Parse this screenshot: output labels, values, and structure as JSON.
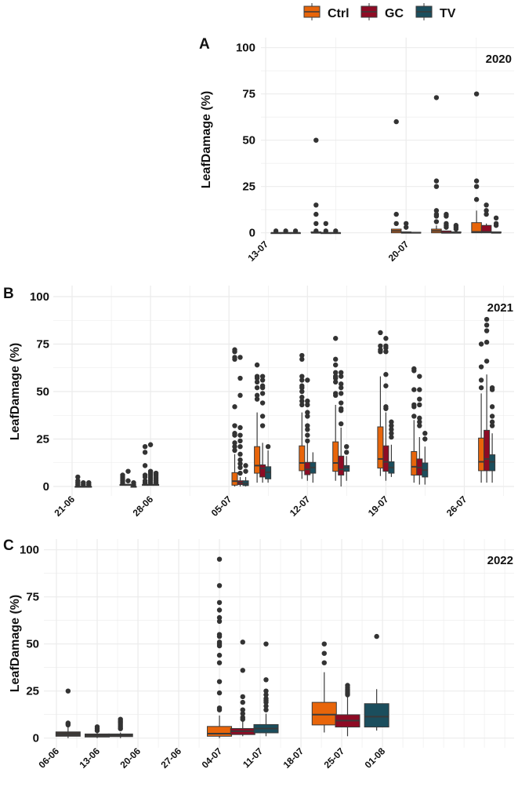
{
  "legend": {
    "position": "top",
    "items": [
      {
        "label": "Ctrl",
        "color": "#E8650A"
      },
      {
        "label": "GC",
        "color": "#8E0B24"
      },
      {
        "label": "TV",
        "color": "#1B4E5D"
      }
    ]
  },
  "chart_data": [
    {
      "type": "boxplot",
      "panel": "A",
      "year_label": "2020",
      "ylabel": "LeafDamage (%)",
      "ylim": [
        0,
        100
      ],
      "yticks": [
        "0",
        "25",
        "50",
        "75",
        "100"
      ],
      "xticks": [
        "13-07",
        "20-07"
      ],
      "grid": true,
      "boxes": [
        {
          "date": "14-07",
          "group": "Ctrl",
          "q1": 0,
          "median": 0,
          "q3": 0,
          "low": 0,
          "high": 0,
          "outliers": [
            1
          ]
        },
        {
          "date": "14-07",
          "group": "GC",
          "q1": 0,
          "median": 0,
          "q3": 0,
          "low": 0,
          "high": 0,
          "outliers": [
            1
          ]
        },
        {
          "date": "14-07",
          "group": "TV",
          "q1": 0,
          "median": 0,
          "q3": 0,
          "low": 0,
          "high": 0,
          "outliers": [
            1
          ]
        },
        {
          "date": "16-07",
          "group": "Ctrl",
          "q1": 0,
          "median": 0,
          "q3": 0.5,
          "low": 0,
          "high": 0.5,
          "outliers": [
            1,
            5,
            10,
            15,
            50
          ]
        },
        {
          "date": "16-07",
          "group": "GC",
          "q1": 0,
          "median": 0,
          "q3": 0,
          "low": 0,
          "high": 0,
          "outliers": [
            1,
            5
          ]
        },
        {
          "date": "16-07",
          "group": "TV",
          "q1": 0,
          "median": 0,
          "q3": 0,
          "low": 0,
          "high": 0,
          "outliers": [
            1
          ]
        },
        {
          "date": "20-07",
          "group": "Ctrl",
          "q1": 0,
          "median": 1,
          "q3": 2,
          "low": 0,
          "high": 2,
          "outliers": [
            5,
            10,
            60
          ]
        },
        {
          "date": "20-07",
          "group": "GC",
          "q1": 0,
          "median": 0,
          "q3": 0.5,
          "low": 0,
          "high": 0.5,
          "outliers": [
            3,
            5
          ]
        },
        {
          "date": "20-07",
          "group": "TV",
          "q1": 0,
          "median": 0,
          "q3": 0.3,
          "low": 0,
          "high": 0.3,
          "outliers": []
        },
        {
          "date": "22-07",
          "group": "Ctrl",
          "q1": 0,
          "median": 1,
          "q3": 2,
          "low": 0,
          "high": 4,
          "outliers": [
            6,
            9,
            10,
            12,
            25,
            28,
            73
          ]
        },
        {
          "date": "22-07",
          "group": "GC",
          "q1": 0,
          "median": 0,
          "q3": 1,
          "low": 0,
          "high": 1,
          "outliers": [
            3,
            4,
            5,
            9,
            10
          ]
        },
        {
          "date": "22-07",
          "group": "TV",
          "q1": 0,
          "median": 0,
          "q3": 0.5,
          "low": 0,
          "high": 0.5,
          "outliers": [
            2,
            3,
            4
          ]
        },
        {
          "date": "24-07",
          "group": "Ctrl",
          "q1": 0,
          "median": 0.5,
          "q3": 5.5,
          "low": 0,
          "high": 12,
          "outliers": [
            18,
            25,
            28,
            75
          ]
        },
        {
          "date": "24-07",
          "group": "GC",
          "q1": 0,
          "median": 0.5,
          "q3": 4,
          "low": 0,
          "high": 5,
          "outliers": [
            10,
            12,
            15
          ]
        },
        {
          "date": "24-07",
          "group": "TV",
          "q1": 0,
          "median": 0,
          "q3": 0.5,
          "low": 0,
          "high": 0.5,
          "outliers": [
            4,
            5,
            8
          ]
        }
      ]
    },
    {
      "type": "boxplot",
      "panel": "B",
      "year_label": "2021",
      "ylabel": "LeafDamage (%)",
      "ylim": [
        0,
        100
      ],
      "yticks": [
        "0",
        "25",
        "50",
        "75",
        "100"
      ],
      "xticks": [
        "21-06",
        "28-06",
        "05-07",
        "12-07",
        "19-07",
        "26-07"
      ],
      "grid": true,
      "boxes": [
        {
          "date": "22-06",
          "group": "Ctrl",
          "q1": 0,
          "median": 0,
          "q3": 0,
          "low": 0,
          "high": 0,
          "outliers": [
            1,
            2,
            3,
            5
          ]
        },
        {
          "date": "22-06",
          "group": "GC",
          "q1": 0,
          "median": 0,
          "q3": 0,
          "low": 0,
          "high": 0,
          "outliers": [
            1,
            2
          ]
        },
        {
          "date": "22-06",
          "group": "TV",
          "q1": 0,
          "median": 0,
          "q3": 0,
          "low": 0,
          "high": 0,
          "outliers": [
            1,
            2
          ]
        },
        {
          "date": "26-06",
          "group": "Ctrl",
          "q1": 1,
          "median": 1,
          "q3": 1,
          "low": 1,
          "high": 1,
          "outliers": [
            2,
            3,
            4,
            5,
            6
          ]
        },
        {
          "date": "26-06",
          "group": "GC",
          "q1": 1,
          "median": 1,
          "q3": 1,
          "low": 1,
          "high": 1,
          "outliers": [
            3,
            8
          ]
        },
        {
          "date": "26-06",
          "group": "TV",
          "q1": 0,
          "median": 0,
          "q3": 0,
          "low": 0,
          "high": 0,
          "outliers": [
            1,
            2
          ]
        },
        {
          "date": "28-06",
          "group": "Ctrl",
          "q1": 1,
          "median": 1,
          "q3": 1,
          "low": 1,
          "high": 1,
          "outliers": [
            2,
            3,
            5,
            6,
            11,
            18,
            21
          ]
        },
        {
          "date": "28-06",
          "group": "GC",
          "q1": 1,
          "median": 1,
          "q3": 1,
          "low": 1,
          "high": 1,
          "outliers": [
            2,
            3,
            4,
            5,
            6,
            7,
            8,
            22
          ]
        },
        {
          "date": "28-06",
          "group": "TV",
          "q1": 1,
          "median": 1,
          "q3": 1,
          "low": 1,
          "high": 1,
          "outliers": [
            2,
            3,
            4,
            5,
            6,
            7
          ]
        },
        {
          "date": "06-07",
          "group": "Ctrl",
          "q1": 0.7,
          "median": 2.8,
          "q3": 7.3,
          "low": 0,
          "high": 17,
          "outliers": [
            19,
            21,
            23,
            27,
            28,
            32,
            42,
            67,
            68,
            71,
            72
          ]
        },
        {
          "date": "06-07",
          "group": "GC",
          "q1": 1,
          "median": 2,
          "q3": 3,
          "low": 0,
          "high": 5,
          "outliers": [
            7,
            10,
            12,
            14,
            17,
            21,
            24,
            27,
            31,
            48,
            57,
            68
          ]
        },
        {
          "date": "06-07",
          "group": "TV",
          "q1": 0.5,
          "median": 1.5,
          "q3": 3,
          "low": 0,
          "high": 5,
          "outliers": [
            8,
            11
          ]
        },
        {
          "date": "08-07",
          "group": "Ctrl",
          "q1": 7,
          "median": 11,
          "q3": 21,
          "low": 2,
          "high": 39,
          "outliers": [
            46,
            48,
            52,
            55,
            57,
            58,
            64
          ]
        },
        {
          "date": "08-07",
          "group": "GC",
          "q1": 5,
          "median": 9.6,
          "q3": 11.4,
          "low": 2,
          "high": 23,
          "outliers": [
            32,
            37,
            44,
            49,
            52,
            53,
            56,
            58
          ]
        },
        {
          "date": "08-07",
          "group": "TV",
          "q1": 4,
          "median": 7.5,
          "q3": 10.4,
          "low": 2,
          "high": 19,
          "outliers": [
            21
          ]
        },
        {
          "date": "12-07",
          "group": "Ctrl",
          "q1": 8.3,
          "median": 12.4,
          "q3": 21.4,
          "low": 4,
          "high": 39,
          "outliers": [
            43,
            45,
            47,
            50,
            52,
            53,
            56,
            58,
            67,
            69
          ]
        },
        {
          "date": "12-07",
          "group": "GC",
          "q1": 6.2,
          "median": 9,
          "q3": 12.7,
          "low": 3,
          "high": 23,
          "outliers": [
            24,
            27,
            30,
            32,
            37,
            39,
            43,
            45,
            56
          ]
        },
        {
          "date": "12-07",
          "group": "TV",
          "q1": 7,
          "median": 10,
          "q3": 12.7,
          "low": 2,
          "high": 18,
          "outliers": []
        },
        {
          "date": "15-07",
          "group": "Ctrl",
          "q1": 8,
          "median": 12.4,
          "q3": 23.5,
          "low": 3,
          "high": 43,
          "outliers": [
            48,
            49,
            55,
            57,
            58,
            60,
            64,
            67,
            78
          ]
        },
        {
          "date": "15-07",
          "group": "GC",
          "q1": 6,
          "median": 9,
          "q3": 16,
          "low": 0,
          "high": 31,
          "outliers": [
            33,
            40,
            41,
            44,
            49,
            52,
            54,
            58,
            60
          ]
        },
        {
          "date": "15-07",
          "group": "TV",
          "q1": 8,
          "median": 10,
          "q3": 11,
          "low": 3,
          "high": 16,
          "outliers": [
            18,
            21
          ]
        },
        {
          "date": "19-07",
          "group": "Ctrl",
          "q1": 9.7,
          "median": 14.5,
          "q3": 31.4,
          "low": 5.5,
          "high": 58,
          "outliers": [
            71,
            72,
            74,
            81
          ]
        },
        {
          "date": "19-07",
          "group": "GC",
          "q1": 8,
          "median": 13,
          "q3": 21.4,
          "low": 3,
          "high": 39,
          "outliers": [
            41,
            42,
            53,
            59,
            71,
            73,
            74,
            78
          ]
        },
        {
          "date": "19-07",
          "group": "TV",
          "q1": 7,
          "median": 10,
          "q3": 13,
          "low": 5,
          "high": 22,
          "outliers": [
            26,
            28,
            30,
            32,
            34
          ]
        },
        {
          "date": "22-07",
          "group": "Ctrl",
          "q1": 6,
          "median": 10.4,
          "q3": 18.4,
          "low": 2,
          "high": 35,
          "outliers": [
            37,
            42,
            43,
            51,
            61,
            62
          ]
        },
        {
          "date": "22-07",
          "group": "GC",
          "q1": 6,
          "median": 10,
          "q3": 14.5,
          "low": 1,
          "high": 26,
          "outliers": [
            32,
            34,
            36,
            43,
            46,
            51,
            58
          ]
        },
        {
          "date": "22-07",
          "group": "TV",
          "q1": 5,
          "median": 8.6,
          "q3": 12.4,
          "low": 1,
          "high": 21,
          "outliers": [
            25,
            28
          ]
        },
        {
          "date": "28-07",
          "group": "Ctrl",
          "q1": 8.3,
          "median": 13,
          "q3": 25.5,
          "low": 2,
          "high": 49,
          "outliers": [
            52,
            56,
            63,
            75
          ]
        },
        {
          "date": "28-07",
          "group": "GC",
          "q1": 8.3,
          "median": 14.5,
          "q3": 29.6,
          "low": 2,
          "high": 59,
          "outliers": [
            66,
            76,
            82,
            85,
            88
          ]
        },
        {
          "date": "28-07",
          "group": "TV",
          "q1": 8.3,
          "median": 13,
          "q3": 16.7,
          "low": 2,
          "high": 28,
          "outliers": [
            32,
            34,
            37,
            42,
            51,
            52
          ]
        }
      ]
    },
    {
      "type": "boxplot",
      "panel": "C",
      "year_label": "2022",
      "ylabel": "LeafDamage (%)",
      "ylim": [
        0,
        100
      ],
      "yticks": [
        "0",
        "25",
        "50",
        "75",
        "100"
      ],
      "xticks": [
        "06-06",
        "13-06",
        "20-06",
        "27-06",
        "04-07",
        "11-07",
        "18-07",
        "25-07",
        "01-08"
      ],
      "grid": true,
      "boxes": [
        {
          "date": "08-06",
          "color": "#3d3632",
          "q1": 1,
          "median": 2,
          "q3": 3.3,
          "low": 0,
          "high": 6,
          "outliers": [
            7,
            7.5,
            8,
            25
          ]
        },
        {
          "date": "13-06",
          "color": "#3d3632",
          "q1": 0.6,
          "median": 1.4,
          "q3": 2.2,
          "low": 0,
          "high": 3,
          "outliers": [
            4,
            5,
            6
          ]
        },
        {
          "date": "17-06",
          "color": "#3d3632",
          "q1": 0.8,
          "median": 1.6,
          "q3": 2.2,
          "low": 0,
          "high": 3,
          "outliers": [
            5,
            6,
            7,
            8,
            9,
            10
          ]
        },
        {
          "date": "04-07",
          "group": "Ctrl",
          "q1": 1,
          "median": 2.4,
          "q3": 6.2,
          "low": 0,
          "high": 12,
          "outliers": [
            15,
            16,
            24,
            30,
            40,
            44,
            49,
            50,
            51,
            54,
            55,
            62,
            64,
            68,
            72,
            81,
            95
          ]
        },
        {
          "date": "08-07",
          "group": "GC",
          "q1": 1.9,
          "median": 3.7,
          "q3": 5.1,
          "low": 1,
          "high": 9,
          "outliers": [
            10,
            11,
            13,
            15,
            19,
            22,
            36,
            51
          ]
        },
        {
          "date": "12-07",
          "group": "TV",
          "q1": 2.8,
          "median": 5.1,
          "q3": 7.2,
          "low": 1,
          "high": 13,
          "outliers": [
            15,
            17,
            19,
            20,
            21,
            23,
            25,
            31,
            50
          ]
        },
        {
          "date": "22-07",
          "group": "Ctrl",
          "q1": 7,
          "median": 12.5,
          "q3": 19,
          "low": 3,
          "high": 35,
          "outliers": [
            40,
            45,
            50
          ]
        },
        {
          "date": "26-07",
          "group": "GC",
          "q1": 5.9,
          "median": 9.3,
          "q3": 12.4,
          "low": 1,
          "high": 22,
          "outliers": [
            23,
            24,
            25,
            26,
            27,
            28
          ]
        },
        {
          "date": "31-07",
          "group": "TV",
          "q1": 5.9,
          "median": 11.4,
          "q3": 18.3,
          "low": 4,
          "high": 26,
          "outliers": [
            54
          ]
        }
      ]
    }
  ]
}
